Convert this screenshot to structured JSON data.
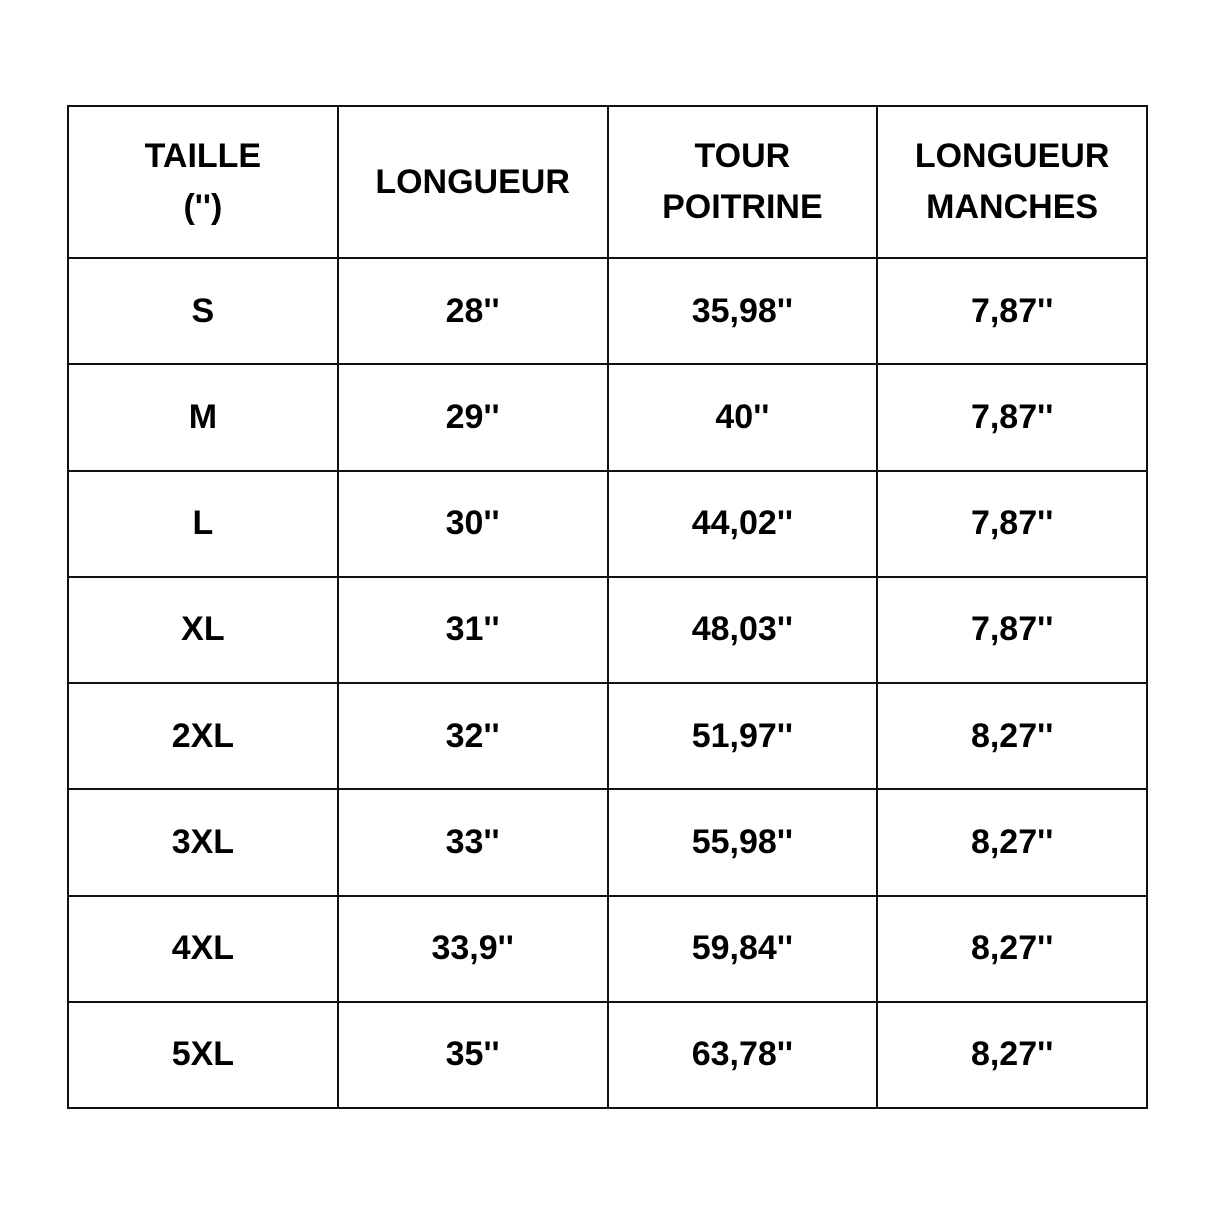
{
  "headers": [
    [
      "TAILLE",
      "('')"
    ],
    [
      "LONGUEUR"
    ],
    [
      "TOUR",
      "POITRINE"
    ],
    [
      "LONGUEUR",
      "MANCHES"
    ]
  ],
  "rows": [
    [
      "S",
      "28''",
      "35,98''",
      "7,87''"
    ],
    [
      "M",
      "29''",
      "40''",
      "7,87''"
    ],
    [
      "L",
      "30''",
      "44,02''",
      "7,87''"
    ],
    [
      "XL",
      "31''",
      "48,03''",
      "7,87''"
    ],
    [
      "2XL",
      "32''",
      "51,97''",
      "8,27''"
    ],
    [
      "3XL",
      "33''",
      "55,98''",
      "8,27''"
    ],
    [
      "4XL",
      "33,9''",
      "59,84''",
      "8,27''"
    ],
    [
      "5XL",
      "35''",
      "63,78''",
      "8,27''"
    ]
  ]
}
